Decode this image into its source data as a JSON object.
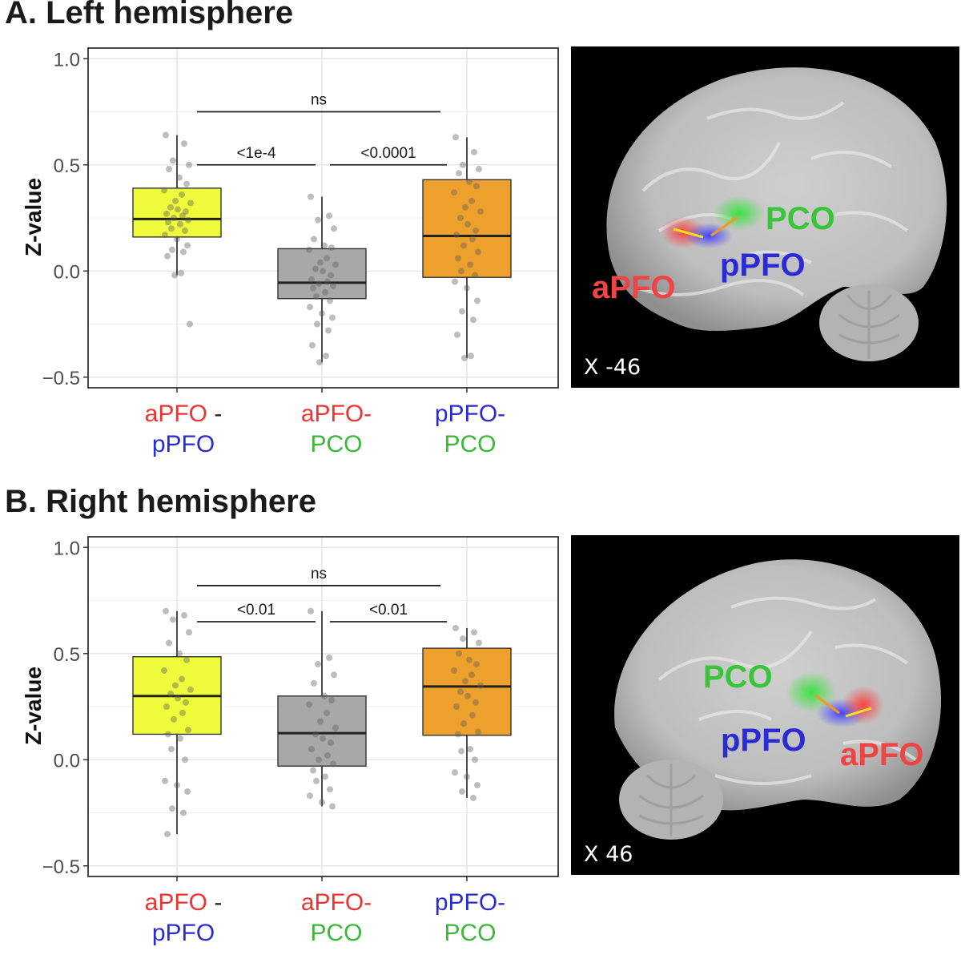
{
  "colors": {
    "aPFO": "#ee3333",
    "pPFO": "#2b2bd6",
    "PCO": "#39b83a",
    "box_fill": [
      "#eefc3c",
      "#a8a8a8",
      "#eea02c"
    ]
  },
  "ylabel": "Z-value",
  "yticks": [
    "1.0",
    "0.5",
    "0.0",
    "−0.5"
  ],
  "xlabels": [
    {
      "top": "aPFO",
      "sep": " -",
      "bottom": "pPFO",
      "top_color": "aPFO",
      "bottom_color": "pPFO"
    },
    {
      "top": "aPFO",
      "sep": "-",
      "bottom": "PCO",
      "top_color": "aPFO",
      "bottom_color": "PCO"
    },
    {
      "top": "pPFO",
      "sep": "-",
      "bottom": "PCO",
      "top_color": "pPFO",
      "bottom_color": "PCO"
    }
  ],
  "panels": [
    {
      "title": "A. Left hemisphere",
      "slice_label": "X -46",
      "roi_labels": {
        "PCO": "PCO",
        "pPFO": "pPFO",
        "aPFO": "aPFO"
      },
      "significance": [
        {
          "from": 0,
          "to": 2,
          "label": "ns",
          "y": 0.75
        },
        {
          "from": 0,
          "to": 1,
          "label": "<1e-4",
          "y": 0.5
        },
        {
          "from": 1,
          "to": 2,
          "label": "<0.0001",
          "y": 0.5
        }
      ]
    },
    {
      "title": "B. Right hemisphere",
      "slice_label": "X 46",
      "roi_labels": {
        "PCO": "PCO",
        "pPFO": "pPFO",
        "aPFO": "aPFO"
      },
      "significance": [
        {
          "from": 0,
          "to": 2,
          "label": "ns",
          "y": 0.82
        },
        {
          "from": 0,
          "to": 1,
          "label": "<0.01",
          "y": 0.65
        },
        {
          "from": 1,
          "to": 2,
          "label": "<0.01",
          "y": 0.65
        }
      ]
    }
  ],
  "chart_data": [
    {
      "type": "box",
      "title": "A. Left hemisphere",
      "ylabel": "Z-value",
      "ylim": [
        -0.55,
        1.05
      ],
      "categories": [
        "aPFO - pPFO",
        "aPFO-PCO",
        "pPFO-PCO"
      ],
      "boxes": [
        {
          "min": -0.02,
          "q1": 0.16,
          "median": 0.245,
          "q3": 0.39,
          "max": 0.64
        },
        {
          "min": -0.43,
          "q1": -0.13,
          "median": -0.055,
          "q3": 0.105,
          "max": 0.35
        },
        {
          "min": -0.41,
          "q1": -0.03,
          "median": 0.165,
          "q3": 0.43,
          "max": 0.63
        }
      ],
      "points": [
        [
          0.64,
          0.6,
          0.52,
          0.5,
          0.48,
          0.44,
          0.41,
          0.38,
          0.36,
          0.33,
          0.32,
          0.3,
          0.29,
          0.28,
          0.27,
          0.26,
          0.25,
          0.24,
          0.23,
          0.22,
          0.2,
          0.19,
          0.17,
          0.15,
          0.12,
          0.1,
          0.09,
          0.07,
          -0.01,
          -0.02,
          -0.25
        ],
        [
          0.35,
          0.26,
          0.24,
          0.2,
          0.15,
          0.12,
          0.11,
          0.1,
          0.06,
          0.04,
          0.03,
          0.01,
          0.0,
          -0.02,
          -0.04,
          -0.05,
          -0.06,
          -0.07,
          -0.08,
          -0.1,
          -0.12,
          -0.14,
          -0.17,
          -0.2,
          -0.22,
          -0.25,
          -0.28,
          -0.35,
          -0.4,
          -0.43
        ],
        [
          0.63,
          0.56,
          0.5,
          0.48,
          0.46,
          0.42,
          0.4,
          0.37,
          0.33,
          0.3,
          0.28,
          0.25,
          0.22,
          0.19,
          0.17,
          0.15,
          0.12,
          0.09,
          0.06,
          0.03,
          0.0,
          -0.02,
          -0.05,
          -0.08,
          -0.14,
          -0.19,
          -0.23,
          -0.3,
          -0.4,
          -0.41
        ]
      ]
    },
    {
      "type": "box",
      "title": "B. Right hemisphere",
      "ylabel": "Z-value",
      "ylim": [
        -0.55,
        1.05
      ],
      "categories": [
        "aPFO - pPFO",
        "aPFO-PCO",
        "pPFO-PCO"
      ],
      "boxes": [
        {
          "min": -0.35,
          "q1": 0.12,
          "median": 0.3,
          "q3": 0.485,
          "max": 0.7
        },
        {
          "min": -0.22,
          "q1": -0.03,
          "median": 0.125,
          "q3": 0.3,
          "max": 0.7
        },
        {
          "min": -0.18,
          "q1": 0.115,
          "median": 0.345,
          "q3": 0.525,
          "max": 0.62
        }
      ],
      "points": [
        [
          0.7,
          0.68,
          0.66,
          0.6,
          0.55,
          0.5,
          0.47,
          0.42,
          0.38,
          0.35,
          0.33,
          0.31,
          0.29,
          0.27,
          0.25,
          0.22,
          0.19,
          0.14,
          0.12,
          0.1,
          0.05,
          0.0,
          -0.1,
          -0.12,
          -0.15,
          -0.23,
          -0.25,
          -0.35
        ],
        [
          0.7,
          0.48,
          0.45,
          0.4,
          0.36,
          0.3,
          0.28,
          0.26,
          0.22,
          0.18,
          0.15,
          0.12,
          0.1,
          0.08,
          0.05,
          0.02,
          0.0,
          -0.02,
          -0.05,
          -0.08,
          -0.1,
          -0.14,
          -0.17,
          -0.2,
          -0.22
        ],
        [
          0.62,
          0.6,
          0.57,
          0.55,
          0.5,
          0.47,
          0.45,
          0.42,
          0.4,
          0.37,
          0.35,
          0.32,
          0.3,
          0.27,
          0.25,
          0.21,
          0.17,
          0.13,
          0.12,
          0.05,
          0.04,
          0.0,
          -0.06,
          -0.08,
          -0.12,
          -0.15,
          -0.18
        ]
      ]
    }
  ]
}
